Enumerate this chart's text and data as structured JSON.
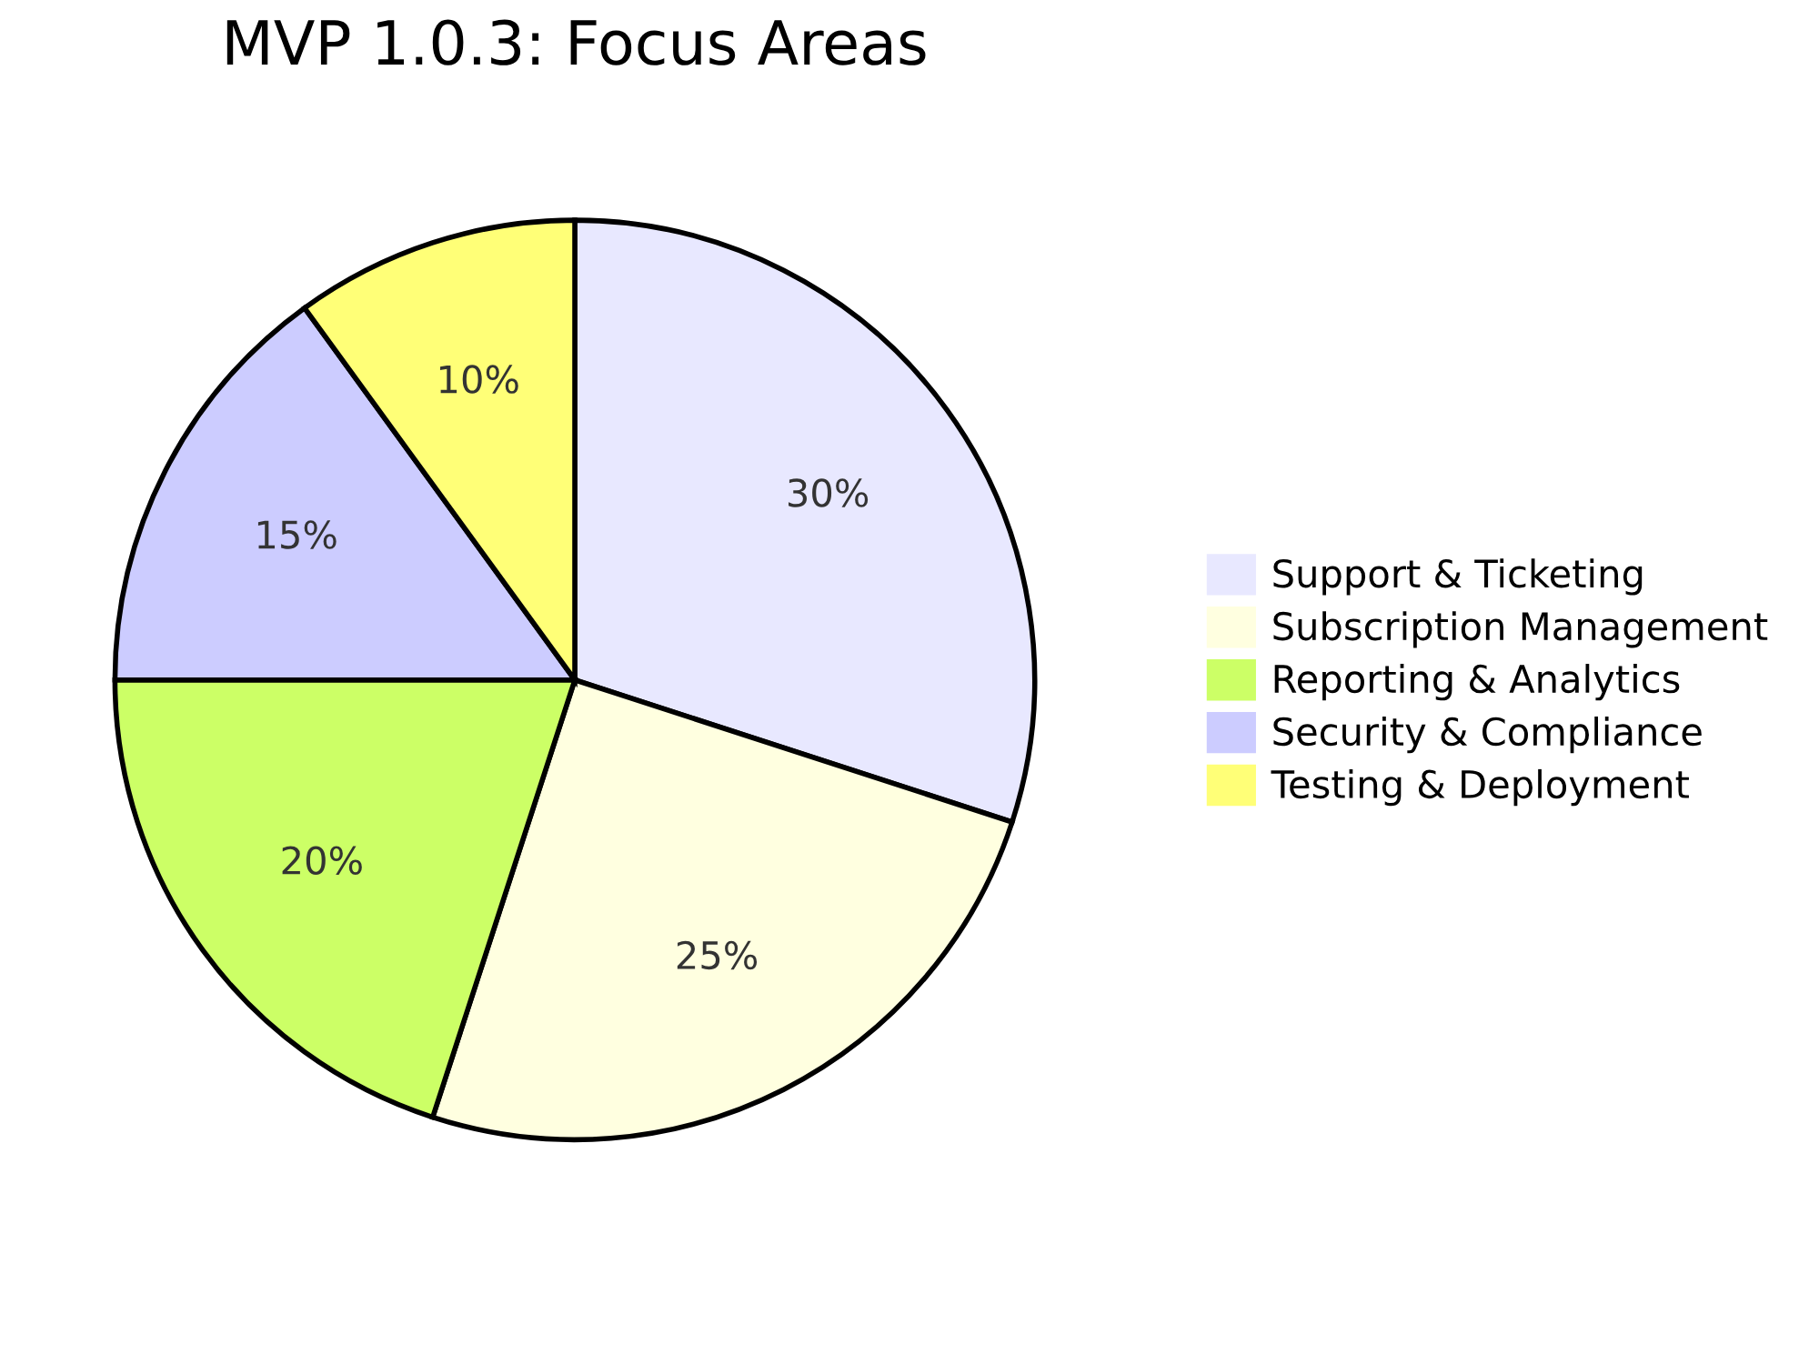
{
  "chart_data": {
    "type": "pie",
    "title": "MVP 1.0.3: Focus Areas",
    "categories": [
      "Support & Ticketing",
      "Subscription Management",
      "Reporting & Analytics",
      "Security & Compliance",
      "Testing & Deployment"
    ],
    "values": [
      30,
      25,
      20,
      15,
      10
    ],
    "colors": [
      "#e8e8ff",
      "#ffffe0",
      "#ccff66",
      "#ccccff",
      "#ffff77"
    ],
    "value_labels": [
      "30%",
      "25%",
      "20%",
      "15%",
      "10%"
    ],
    "legend": "right"
  }
}
